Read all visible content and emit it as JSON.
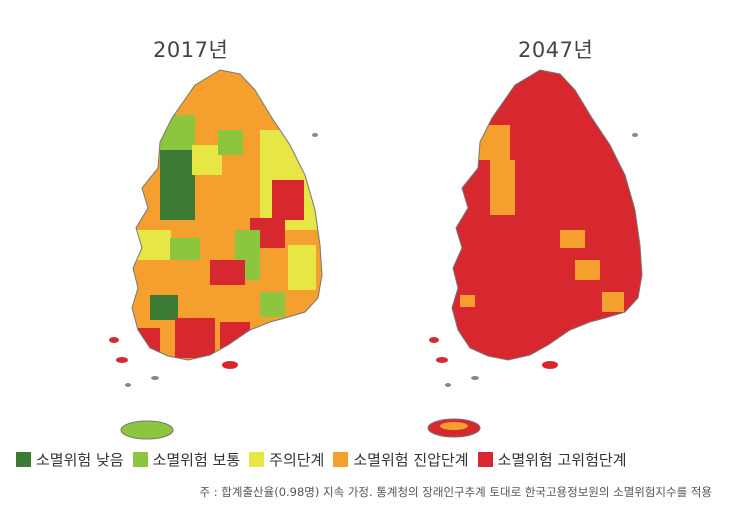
{
  "maps": [
    {
      "year_label": "2017년"
    },
    {
      "year_label": "2047년"
    }
  ],
  "legend": [
    {
      "label": "소멸위험 낮음",
      "color": "#3d7a35"
    },
    {
      "label": "소멸위험 보통",
      "color": "#8cc63f"
    },
    {
      "label": "주의단계",
      "color": "#e6e645"
    },
    {
      "label": "소멸위험 진압단계",
      "color": "#f5a02e"
    },
    {
      "label": "소멸위험 고위험단계",
      "color": "#d7282f"
    }
  ],
  "footnote": "주 : 합계출산율(0.98명) 지속 가정. 통계청의 장래인구추계 토대로 한국고용정보원의 소멸위험지수를 적용"
}
